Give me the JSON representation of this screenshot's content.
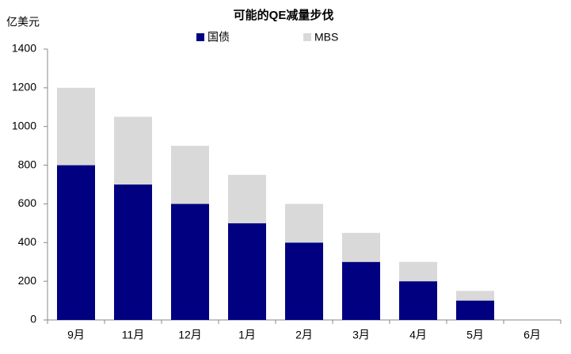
{
  "chart_data": {
    "type": "stacked_bar",
    "title": "可能的QE减量步伐",
    "y_label": "亿美元",
    "categories": [
      "9月",
      "11月",
      "12月",
      "1月",
      "2月",
      "3月",
      "4月",
      "5月",
      "6月"
    ],
    "series": [
      {
        "name": "国债",
        "color": "#000080",
        "values": [
          800,
          700,
          600,
          500,
          400,
          300,
          200,
          100,
          0
        ]
      },
      {
        "name": "MBS",
        "color": "#d9d9d9",
        "values": [
          400,
          350,
          300,
          250,
          200,
          150,
          100,
          50,
          0
        ]
      }
    ],
    "ylim": [
      0,
      1400
    ],
    "yticks": [
      0,
      200,
      400,
      600,
      800,
      1000,
      1200,
      1400
    ],
    "grid": false
  }
}
